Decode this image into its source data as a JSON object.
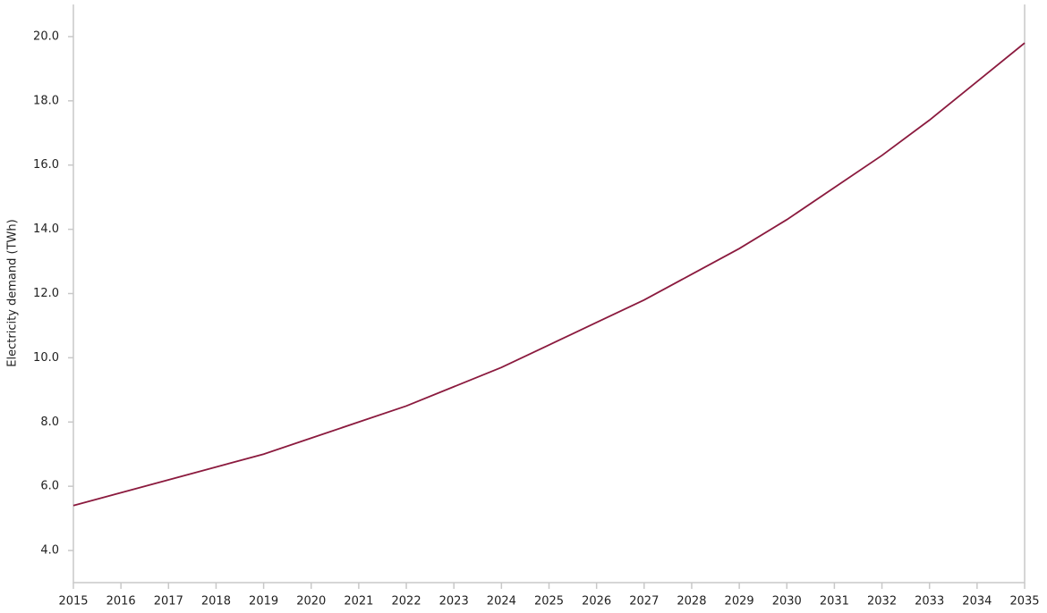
{
  "chart_data": {
    "type": "line",
    "y_label": "Electricity demand (TWh)",
    "x": [
      2015,
      2016,
      2017,
      2018,
      2019,
      2020,
      2021,
      2022,
      2023,
      2024,
      2025,
      2026,
      2027,
      2028,
      2029,
      2030,
      2031,
      2032,
      2033,
      2034,
      2035
    ],
    "series": [
      {
        "color": "#8b1a3e",
        "values": [
          5.4,
          5.8,
          6.2,
          6.6,
          7.0,
          7.5,
          8.0,
          8.5,
          9.1,
          9.7,
          10.4,
          11.1,
          11.8,
          12.6,
          13.4,
          14.3,
          15.3,
          16.3,
          17.4,
          18.6,
          19.8
        ]
      }
    ],
    "xlim": [
      2015,
      2035
    ],
    "xticks": [
      2015,
      2016,
      2017,
      2018,
      2019,
      2020,
      2021,
      2022,
      2023,
      2024,
      2025,
      2026,
      2027,
      2028,
      2029,
      2030,
      2031,
      2032,
      2033,
      2034,
      2035
    ],
    "ylim": [
      3,
      21
    ],
    "yticks": [
      {
        "value": 4,
        "label": "4.0"
      },
      {
        "value": 6,
        "label": "6.0"
      },
      {
        "value": 8,
        "label": "8.0"
      },
      {
        "value": 10,
        "label": "10.0"
      },
      {
        "value": 12,
        "label": "12.0"
      },
      {
        "value": 14,
        "label": "14.0"
      },
      {
        "value": 16,
        "label": "16.0"
      },
      {
        "value": 18,
        "label": "18.0"
      },
      {
        "value": 20,
        "label": "20.0"
      }
    ]
  }
}
